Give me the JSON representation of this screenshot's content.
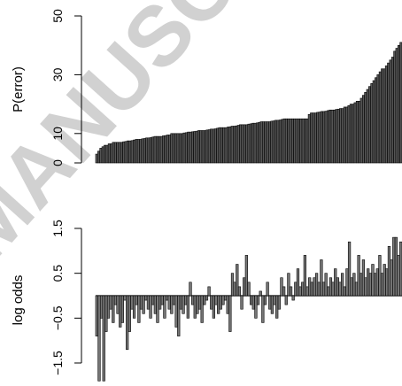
{
  "watermark": {
    "text": "MANUSCRIPT"
  },
  "chart_data": [
    {
      "type": "bar",
      "title": "",
      "xlabel": "",
      "ylabel": "P(error)",
      "ylim": [
        0,
        50
      ],
      "yticks": [
        0,
        10,
        30,
        50
      ],
      "ytick_labels": [
        "0",
        "10",
        "30",
        "50"
      ],
      "grid": false,
      "legend": "none",
      "bar_color": "#555555",
      "values": [
        3,
        4,
        5,
        5.5,
        6,
        6,
        6.5,
        6.5,
        7,
        7,
        7,
        7,
        7,
        7.2,
        7.3,
        7.5,
        7.5,
        7.6,
        7.8,
        8,
        8,
        8,
        8.2,
        8.3,
        8.5,
        8.5,
        8.6,
        8.8,
        9,
        9,
        9,
        9,
        9.2,
        9.3,
        9.5,
        9.5,
        10,
        10,
        10,
        10,
        10,
        10,
        10.2,
        10.3,
        10.5,
        10.5,
        10.6,
        10.7,
        10.8,
        11,
        11,
        11,
        11,
        11.2,
        11.3,
        11.5,
        11.5,
        11.6,
        11.8,
        12,
        12,
        12,
        12,
        12.2,
        12.3,
        12.5,
        12.5,
        12.6,
        12.8,
        13,
        13,
        13,
        13,
        13.2,
        13.3,
        13.5,
        13.5,
        13.6,
        13.8,
        14,
        14,
        14,
        14,
        14,
        14.2,
        14.3,
        14.5,
        14.5,
        14.6,
        14.8,
        15,
        15,
        15,
        15,
        15,
        15,
        15,
        15,
        15,
        15,
        15,
        15,
        16.5,
        17,
        17,
        17,
        17.2,
        17.3,
        17.5,
        17.5,
        17.6,
        17.8,
        18,
        18,
        18,
        18.2,
        18.3,
        18.5,
        18.5,
        19,
        19,
        19.5,
        20,
        20,
        20.5,
        21,
        21,
        22,
        23,
        24,
        25,
        26,
        27,
        28,
        29,
        30,
        31,
        32,
        32,
        33,
        34,
        35,
        36,
        38,
        39,
        40,
        41
      ]
    },
    {
      "type": "bar",
      "title": "",
      "xlabel": "",
      "ylabel": "log odds",
      "ylim": [
        -1.5,
        1.5
      ],
      "yticks": [
        -1.5,
        -0.5,
        0.5,
        1.5
      ],
      "ytick_labels": [
        "−1.5",
        "−0.5",
        "0.5",
        "1.5"
      ],
      "grid": false,
      "legend": "none",
      "baseline": 0,
      "bar_color": "#777777",
      "values": [
        -0.9,
        -1.9,
        -0.5,
        -1.9,
        -0.8,
        -0.5,
        -0.3,
        -0.6,
        -0.2,
        -0.4,
        -0.7,
        -0.6,
        -0.1,
        -1.2,
        -0.8,
        -0.3,
        -0.5,
        -0.2,
        -0.6,
        -0.3,
        -0.4,
        -0.1,
        -0.3,
        -0.5,
        -0.2,
        -0.4,
        -0.6,
        -0.3,
        -0.2,
        -0.5,
        -0.1,
        -0.3,
        -0.4,
        -0.2,
        -0.7,
        -0.9,
        -0.3,
        -0.4,
        -0.2,
        -0.5,
        0.3,
        -0.2,
        -0.5,
        -0.4,
        -0.3,
        -0.6,
        -0.2,
        -0.1,
        0.2,
        -0.3,
        -0.5,
        -0.2,
        -0.4,
        -0.3,
        -0.2,
        -0.1,
        -0.4,
        -0.8,
        0.5,
        0.3,
        0.7,
        0.2,
        -0.3,
        0.4,
        0.9,
        0.3,
        -0.2,
        -0.3,
        -0.5,
        -0.2,
        0.1,
        -0.6,
        -0.2,
        0.3,
        -0.3,
        -0.4,
        -0.2,
        -0.5,
        -0.3,
        0.4,
        0.2,
        -0.2,
        0.5,
        0.2,
        -0.1,
        0.3,
        0.6,
        0.2,
        0.3,
        0.9,
        0.2,
        0.4,
        0.3,
        0.4,
        0.5,
        0.3,
        0.8,
        0.3,
        0.5,
        0.2,
        0.4,
        0.3,
        0.6,
        0.4,
        0.3,
        0.5,
        0.2,
        0.6,
        1.2,
        0.4,
        0.5,
        0.3,
        0.9,
        0.5,
        0.8,
        0.4,
        0.6,
        0.5,
        0.7,
        0.5,
        0.6,
        0.9,
        0.5,
        0.7,
        0.6,
        1.1,
        0.8,
        1.3,
        1.3,
        0.9,
        1.2
      ]
    }
  ]
}
